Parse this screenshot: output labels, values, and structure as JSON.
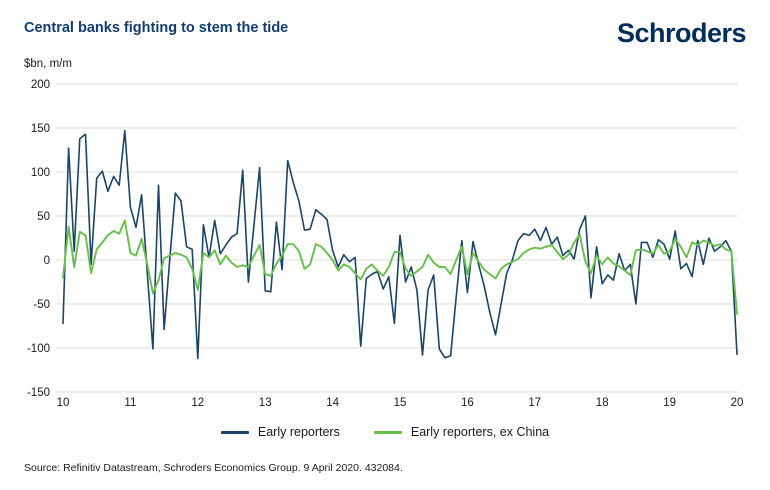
{
  "header": {
    "title": "Central banks fighting to stem the tide",
    "logo_text": "Schroders"
  },
  "footer": {
    "source": "Source: Refinitiv Datastream, Schroders Economics Group. 9 April 2020. 432084."
  },
  "chart_data": {
    "type": "line",
    "title": "Central banks fighting to stem the tide",
    "ylabel": "$bn, m/m",
    "xlabel": "",
    "grid": "horizontal",
    "legend_position": "bottom-center",
    "xlim": [
      10,
      20
    ],
    "ylim": [
      -150,
      200
    ],
    "x_ticks": [
      10,
      11,
      12,
      13,
      14,
      15,
      16,
      17,
      18,
      19,
      20
    ],
    "y_ticks": [
      200,
      150,
      100,
      50,
      0,
      -50,
      -100,
      -150
    ],
    "x_unit": "year (monthly data, 2010-2020)",
    "colors": {
      "grid": "#dcdcdc",
      "tick_text": "#1a1a1a",
      "title": "#123c6d",
      "logo": "#002d5c"
    },
    "series": [
      {
        "name": "Early reporters",
        "color": "#1c4469",
        "stroke_width": 1.6,
        "values": [
          -72,
          127,
          10,
          138,
          143,
          -5,
          93,
          101,
          78,
          95,
          85,
          147,
          60,
          37,
          74,
          -15,
          -101,
          85,
          -79,
          0,
          76,
          67,
          15,
          12,
          -112,
          40,
          3,
          45,
          7,
          17,
          26,
          30,
          102,
          -25,
          40,
          105,
          -35,
          -36,
          43,
          -11,
          113,
          88,
          67,
          34,
          35,
          57,
          52,
          46,
          11,
          -8,
          6,
          -2,
          3,
          -98,
          -21,
          -16,
          -13,
          -33,
          -19,
          -72,
          28,
          -25,
          -8,
          -34,
          -108,
          -34,
          -17,
          -101,
          -111,
          -109,
          -42,
          22,
          -37,
          21,
          -5,
          -30,
          -60,
          -85,
          -50,
          -15,
          0,
          22,
          30,
          28,
          35,
          22,
          37,
          18,
          26,
          5,
          11,
          1,
          35,
          50,
          -43,
          15,
          -27,
          -17,
          -23,
          7,
          -12,
          -5,
          -50,
          20,
          20,
          3,
          23,
          18,
          1,
          33,
          -10,
          -4,
          -19,
          22,
          -5,
          25,
          10,
          15,
          22,
          10,
          -107
        ]
      },
      {
        "name": "Early reporters, ex China",
        "color": "#67bf4b",
        "stroke_width": 1.9,
        "values": [
          -20,
          38,
          -8,
          32,
          28,
          -15,
          12,
          20,
          28,
          33,
          30,
          45,
          8,
          5,
          24,
          -5,
          -38,
          -23,
          2,
          5,
          8,
          6,
          3,
          -10,
          -34,
          8,
          3,
          11,
          -5,
          5,
          -3,
          -8,
          -6,
          -8,
          5,
          17,
          -16,
          -18,
          -4,
          5,
          18,
          18,
          10,
          -10,
          -5,
          18,
          15,
          8,
          0,
          -12,
          -5,
          -8,
          -15,
          -22,
          -10,
          -5,
          -12,
          -18,
          -8,
          9,
          9,
          -10,
          -18,
          -13,
          -8,
          6,
          -3,
          -8,
          -8,
          -16,
          0,
          15,
          -16,
          8,
          -2,
          -11,
          -16,
          -21,
          -10,
          -5,
          -2,
          1,
          8,
          12,
          14,
          13,
          15,
          17,
          9,
          1,
          6,
          20,
          29,
          -2,
          -15,
          5,
          -5,
          3,
          -4,
          -7,
          -12,
          -17,
          11,
          12,
          10,
          7,
          17,
          7,
          10,
          24,
          15,
          3,
          20,
          17,
          22,
          20,
          16,
          18,
          12,
          10,
          -61
        ]
      }
    ]
  }
}
